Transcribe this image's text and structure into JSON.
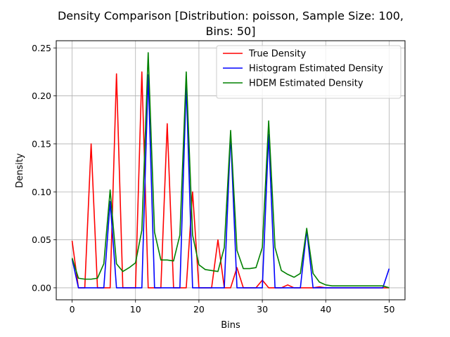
{
  "chart_data": {
    "type": "line",
    "title_line1": "Density Comparison [Distribution: poisson, Sample Size: 100,",
    "title_line2": "Bins: 50]",
    "xlabel": "Bins",
    "ylabel": "Density",
    "xlim": [
      -2.5,
      52.5
    ],
    "ylim": [
      -0.0125,
      0.2575
    ],
    "xticks": [
      0,
      10,
      20,
      30,
      40,
      50
    ],
    "xtick_labels": [
      "0",
      "10",
      "20",
      "30",
      "40",
      "50"
    ],
    "yticks": [
      0.0,
      0.05,
      0.1,
      0.15,
      0.2,
      0.25
    ],
    "ytick_labels": [
      "0.00",
      "0.05",
      "0.10",
      "0.15",
      "0.20",
      "0.25"
    ],
    "grid": true,
    "legend_placement": "top-right",
    "x": [
      0,
      1,
      2,
      3,
      4,
      5,
      6,
      7,
      8,
      9,
      10,
      11,
      12,
      13,
      14,
      15,
      16,
      17,
      18,
      19,
      20,
      21,
      22,
      23,
      24,
      25,
      26,
      27,
      28,
      29,
      30,
      31,
      32,
      33,
      34,
      35,
      36,
      37,
      38,
      39,
      40,
      41,
      42,
      43,
      44,
      45,
      46,
      47,
      48,
      49,
      50
    ],
    "series": [
      {
        "name": "True Density",
        "color": "#ff0000",
        "values": [
          0.049,
          0,
          0,
          0.15,
          0,
          0,
          0,
          0.223,
          0,
          0,
          0,
          0.225,
          0,
          0,
          0,
          0.171,
          0,
          0,
          0,
          0.1,
          0,
          0,
          0,
          0.05,
          0,
          0,
          0.021,
          0,
          0,
          0,
          0.008,
          0,
          0,
          0,
          0.003,
          0,
          0,
          0,
          0,
          0.001,
          0,
          0,
          0,
          0,
          0,
          0,
          0,
          0,
          0,
          0,
          0
        ]
      },
      {
        "name": "Histogram Estimated Density",
        "color": "#0000ff",
        "values": [
          0.03,
          0,
          0,
          0,
          0,
          0,
          0.09,
          0,
          0,
          0,
          0,
          0,
          0.222,
          0,
          0,
          0,
          0,
          0,
          0.212,
          0,
          0,
          0,
          0,
          0,
          0,
          0.16,
          0,
          0,
          0,
          0,
          0,
          0.16,
          0,
          0,
          0,
          0,
          0,
          0.06,
          0,
          0,
          0,
          0,
          0,
          0,
          0,
          0,
          0,
          0,
          0,
          0,
          0.02
        ]
      },
      {
        "name": "HDEM Estimated Density",
        "color": "#008000",
        "values": [
          0.031,
          0.01,
          0.009,
          0.009,
          0.01,
          0.025,
          0.102,
          0.025,
          0.017,
          0.021,
          0.026,
          0.06,
          0.245,
          0.058,
          0.029,
          0.029,
          0.028,
          0.055,
          0.225,
          0.055,
          0.024,
          0.019,
          0.018,
          0.017,
          0.042,
          0.164,
          0.039,
          0.02,
          0.02,
          0.021,
          0.042,
          0.174,
          0.042,
          0.018,
          0.014,
          0.011,
          0.015,
          0.062,
          0.015,
          0.006,
          0.003,
          0.002,
          0.002,
          0.002,
          0.002,
          0.002,
          0.002,
          0.002,
          0.002,
          0.002,
          0.0
        ]
      }
    ]
  }
}
